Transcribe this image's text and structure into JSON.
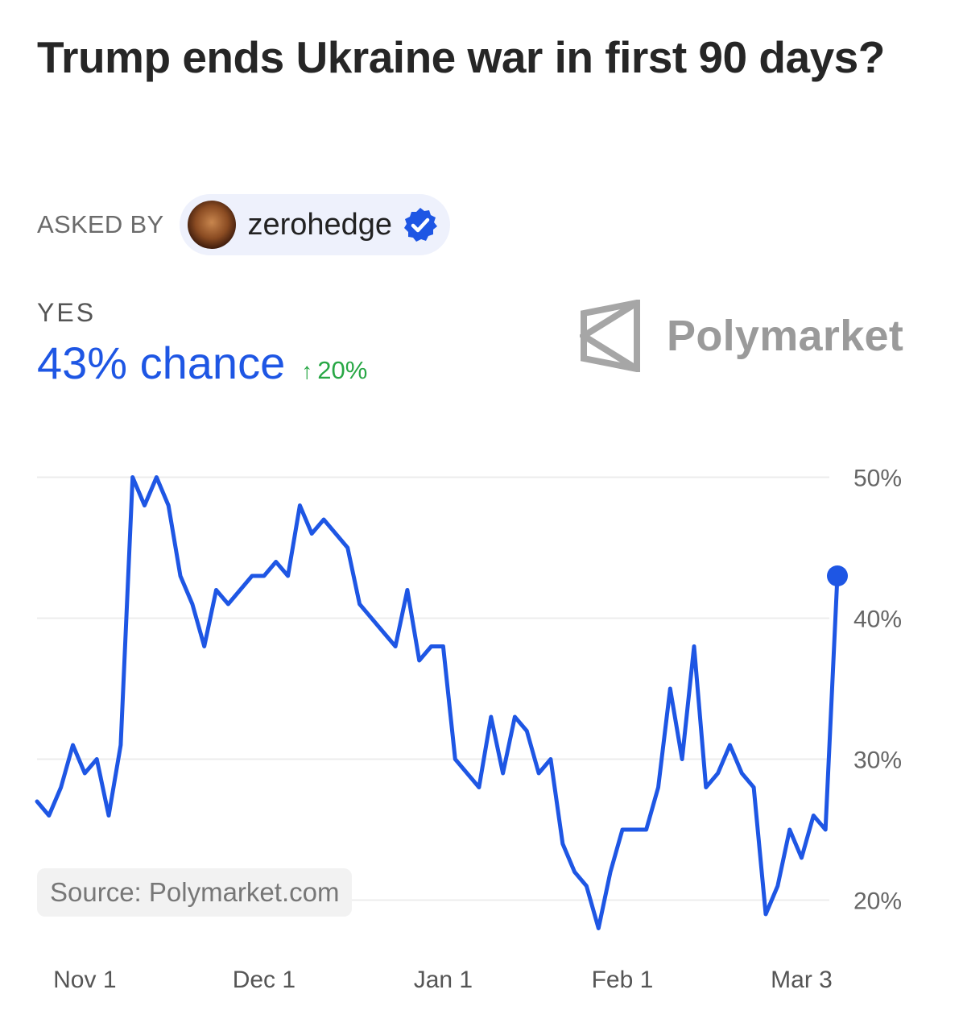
{
  "header": {
    "title": "Trump ends Ukraine war in first 90 days?",
    "asked_by_label": "ASKED BY",
    "user": {
      "name": "zerohedge",
      "verified": true,
      "verified_icon": "verified-check-icon"
    },
    "outcome_label": "YES",
    "chance_text": "43% chance",
    "change_text": "20%",
    "change_arrow": "↑",
    "brand": "Polymarket"
  },
  "colors": {
    "line": "#1e56e4",
    "change_up": "#28a745",
    "grid": "#ececec"
  },
  "chart_data": {
    "type": "line",
    "x": [
      "Oct 24",
      "Oct 26",
      "Oct 28",
      "Oct 30",
      "Nov 1",
      "Nov 3",
      "Nov 5",
      "Nov 7",
      "Nov 9",
      "Nov 11",
      "Nov 13",
      "Nov 15",
      "Nov 17",
      "Nov 19",
      "Nov 21",
      "Nov 23",
      "Nov 25",
      "Nov 27",
      "Nov 29",
      "Dec 1",
      "Dec 3",
      "Dec 5",
      "Dec 7",
      "Dec 9",
      "Dec 11",
      "Dec 13",
      "Dec 15",
      "Dec 17",
      "Dec 19",
      "Dec 21",
      "Dec 23",
      "Dec 25",
      "Dec 27",
      "Dec 29",
      "Jan 1",
      "Jan 3",
      "Jan 5",
      "Jan 7",
      "Jan 9",
      "Jan 11",
      "Jan 13",
      "Jan 15",
      "Jan 17",
      "Jan 19",
      "Jan 21",
      "Jan 23",
      "Jan 25",
      "Jan 27",
      "Jan 29",
      "Feb 1",
      "Feb 3",
      "Feb 5",
      "Feb 7",
      "Feb 9",
      "Feb 11",
      "Feb 13",
      "Feb 15",
      "Feb 17",
      "Feb 19",
      "Feb 21",
      "Feb 23",
      "Feb 25",
      "Feb 27",
      "Mar 1",
      "Mar 3",
      "Mar 5",
      "Mar 7",
      "Mar 9"
    ],
    "series": [
      {
        "values": [
          27,
          26,
          28,
          31,
          29,
          30,
          26,
          31,
          50,
          48,
          50,
          48,
          43,
          41,
          38,
          42,
          41,
          42,
          43,
          43,
          44,
          43,
          48,
          46,
          47,
          46,
          45,
          41,
          40,
          39,
          38,
          42,
          37,
          38,
          38,
          30,
          29,
          28,
          33,
          29,
          33,
          32,
          29,
          30,
          24,
          22,
          21,
          18,
          22,
          25,
          25,
          25,
          28,
          35,
          30,
          38,
          28,
          29,
          31,
          29,
          28,
          19,
          21,
          25,
          23,
          26,
          25,
          43
        ]
      }
    ],
    "y_ticks": [
      "50%",
      "40%",
      "30%",
      "20%"
    ],
    "y_tick_values": [
      50,
      40,
      30,
      20
    ],
    "x_ticks": [
      "Nov 1",
      "Dec 1",
      "Jan 1",
      "Feb 1",
      "Mar 3"
    ],
    "ylim": [
      17,
      53
    ],
    "grid": true,
    "last_point_marker": true,
    "source": "Source: Polymarket.com"
  }
}
